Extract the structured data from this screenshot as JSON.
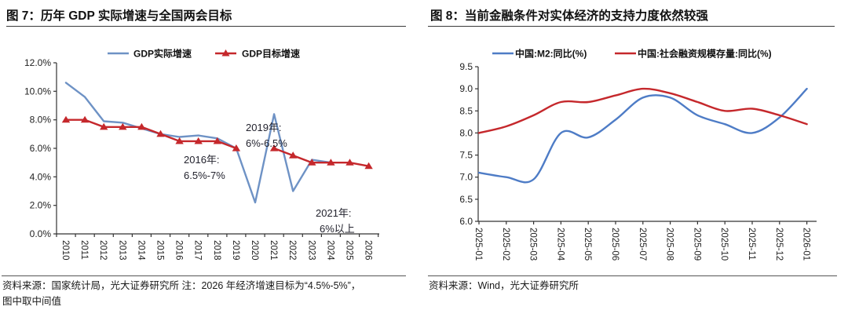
{
  "page": {
    "background": "#ffffff",
    "text_color": "#1a1a1a",
    "rule_color": "#3a3a3a"
  },
  "figure7": {
    "title": "图 7：历年 GDP 实际增速与全国两会目标",
    "source_line1": "资料来源：国家统计局，光大证券研究所 注：2026 年经济增速目标为“4.5%-5%”，",
    "source_line2": "图中取中间值"
  },
  "figure8": {
    "title": "图 8：当前金融条件对实体经济的支持力度依然较强",
    "source_line1": "资料来源：Wind，光大证券研究所"
  },
  "chart_data": [
    {
      "id": "fig7",
      "type": "line",
      "title": "历年 GDP 实际增速与全国两会目标",
      "categories": [
        "2010",
        "2011",
        "2012",
        "2013",
        "2014",
        "2015",
        "2016",
        "2017",
        "2018",
        "2019",
        "2020",
        "2021",
        "2022",
        "2023",
        "2024",
        "2025",
        "2026"
      ],
      "series": [
        {
          "name": "GDP实际增速",
          "color": "#6E92C5",
          "marker": "none",
          "values": [
            10.6,
            9.6,
            7.9,
            7.8,
            7.4,
            7.0,
            6.8,
            6.9,
            6.7,
            6.0,
            2.2,
            8.4,
            3.0,
            5.2,
            5.0,
            null,
            null
          ]
        },
        {
          "name": "GDP目标增速",
          "color": "#C5282C",
          "marker": "triangle",
          "values": [
            8.0,
            8.0,
            7.5,
            7.5,
            7.5,
            7.0,
            6.5,
            6.5,
            6.5,
            6.0,
            null,
            6.0,
            5.5,
            5.0,
            5.0,
            5.0,
            4.75
          ]
        }
      ],
      "ylim": [
        0,
        12
      ],
      "ytick_step": 2,
      "ytick_format": "percent",
      "xlabel": "",
      "ylabel": "",
      "grid": false,
      "legend_position": "top",
      "smooth": false,
      "annotations": [
        {
          "lines": [
            "2016年:",
            "6.5%-7%"
          ],
          "x": 234,
          "y": 164,
          "dx": [
            0,
            0
          ]
        },
        {
          "lines": [
            "2019年:",
            "6%-6.5%"
          ],
          "x": 313,
          "y": 123,
          "dx": [
            0,
            0
          ]
        },
        {
          "lines": [
            "2021年:",
            "6%以上"
          ],
          "x": 402,
          "y": 232,
          "dx": [
            0,
            5
          ]
        }
      ]
    },
    {
      "id": "fig8",
      "type": "line",
      "title": "当前金融条件对实体经济的支持力度依然较强",
      "categories": [
        "2025-01",
        "2025-02",
        "2025-03",
        "2025-04",
        "2025-05",
        "2025-06",
        "2025-07",
        "2025-08",
        "2025-09",
        "2025-10",
        "2025-11",
        "2025-12",
        "2026-01"
      ],
      "series": [
        {
          "name": "中国:M2:同比(%)",
          "color": "#4E7CC6",
          "marker": "none",
          "values": [
            7.1,
            7.0,
            6.95,
            8.0,
            7.9,
            8.3,
            8.8,
            8.8,
            8.4,
            8.2,
            8.0,
            8.35,
            9.0
          ]
        },
        {
          "name": "中国:社会融资规模存量:同比(%)",
          "color": "#C5282C",
          "marker": "none",
          "values": [
            8.0,
            8.15,
            8.4,
            8.7,
            8.7,
            8.85,
            9.0,
            8.9,
            8.7,
            8.5,
            8.55,
            8.4,
            8.2
          ]
        }
      ],
      "ylim": [
        6.0,
        9.5
      ],
      "ytick_step": 0.5,
      "ytick_format": "number",
      "xlabel": "",
      "ylabel": "",
      "grid": false,
      "legend_position": "top",
      "smooth": true,
      "annotations": []
    }
  ]
}
